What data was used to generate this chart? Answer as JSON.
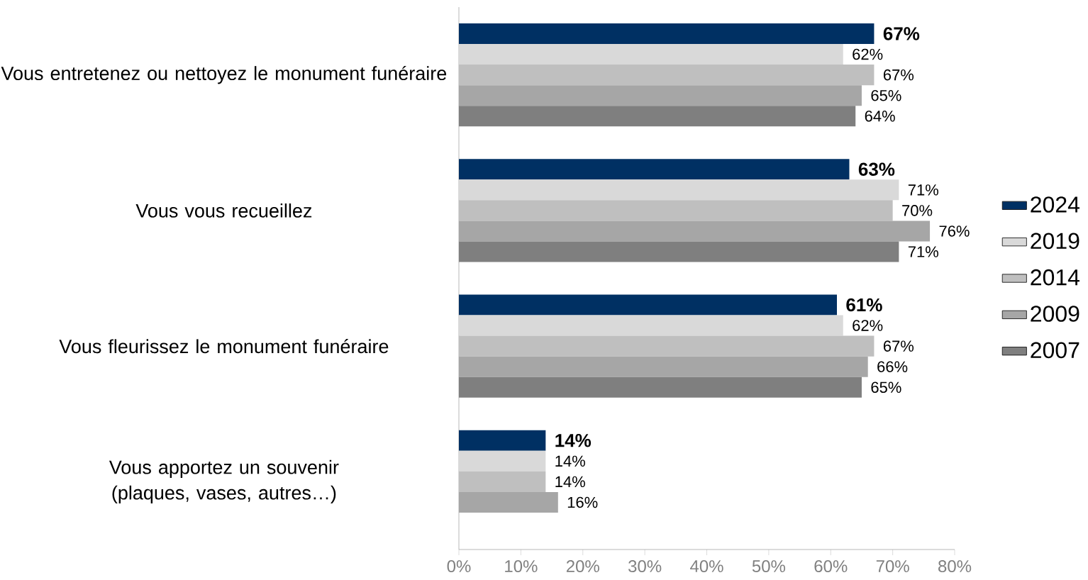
{
  "chart_data": {
    "type": "bar",
    "orientation": "horizontal",
    "categories": [
      "Vous entretenez ou nettoyez le monument funéraire",
      "Vous vous recueillez",
      "Vous fleurissez le monument funéraire",
      "Vous apportez un souvenir (plaques, vases, autres…)"
    ],
    "series": [
      {
        "name": "2024",
        "color": "#003063",
        "values": [
          67,
          63,
          61,
          14
        ],
        "value_labels": [
          "67%",
          "63%",
          "61%",
          "14%"
        ]
      },
      {
        "name": "2019",
        "color": "#d9d9d9",
        "values": [
          62,
          71,
          62,
          14
        ],
        "value_labels": [
          "62%",
          "71%",
          "62%",
          "14%"
        ]
      },
      {
        "name": "2014",
        "color": "#bfbfbf",
        "values": [
          67,
          70,
          67,
          14
        ],
        "value_labels": [
          "67%",
          "70%",
          "67%",
          "14%"
        ]
      },
      {
        "name": "2009",
        "color": "#a6a6a6",
        "values": [
          65,
          76,
          66,
          16
        ],
        "value_labels": [
          "65%",
          "76%",
          "66%",
          "16%"
        ]
      },
      {
        "name": "2007",
        "color": "#7f7f7f",
        "values": [
          64,
          71,
          65,
          null
        ],
        "value_labels": [
          "64%",
          "71%",
          "65%",
          null
        ]
      }
    ],
    "xlim": [
      0,
      80
    ],
    "xticks": [
      {
        "value": 0,
        "label": "0%"
      },
      {
        "value": 10,
        "label": "10%"
      },
      {
        "value": 20,
        "label": "20%"
      },
      {
        "value": 30,
        "label": "30%"
      },
      {
        "value": 40,
        "label": "40%"
      },
      {
        "value": 50,
        "label": "50%"
      },
      {
        "value": 60,
        "label": "60%"
      },
      {
        "value": 70,
        "label": "70%"
      },
      {
        "value": 80,
        "label": "80%"
      }
    ],
    "legend": "right",
    "grid": false
  }
}
